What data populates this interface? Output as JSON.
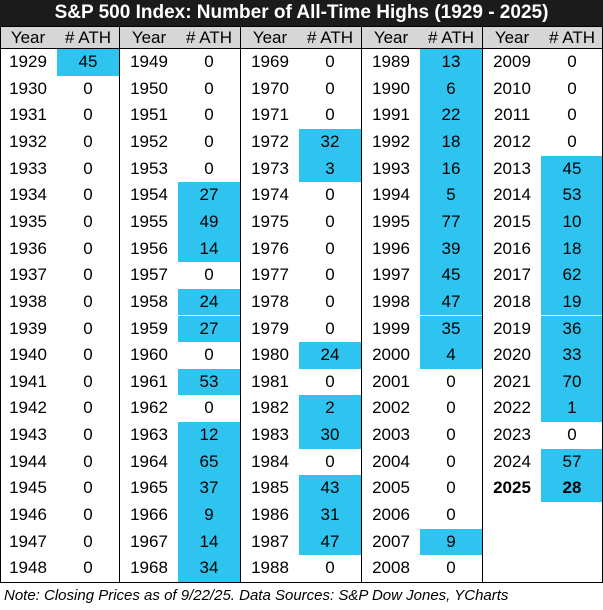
{
  "chart_data": {
    "type": "table",
    "title": "S&P 500 Index: Number of All-Time Highs (1929 - 2025)",
    "columns": [
      "Year",
      "# ATH"
    ],
    "note": "Note: Closing Prices as of 9/22/25. Data Sources: S&P Dow Jones, YCharts",
    "highlight_color": "#2fc3f0",
    "groups": [
      {
        "rows": [
          {
            "year": "1929",
            "ath": "45"
          },
          {
            "year": "1930",
            "ath": "0"
          },
          {
            "year": "1931",
            "ath": "0"
          },
          {
            "year": "1932",
            "ath": "0"
          },
          {
            "year": "1933",
            "ath": "0"
          },
          {
            "year": "1934",
            "ath": "0"
          },
          {
            "year": "1935",
            "ath": "0"
          },
          {
            "year": "1936",
            "ath": "0"
          },
          {
            "year": "1937",
            "ath": "0"
          },
          {
            "year": "1938",
            "ath": "0"
          },
          {
            "year": "1939",
            "ath": "0"
          },
          {
            "year": "1940",
            "ath": "0"
          },
          {
            "year": "1941",
            "ath": "0"
          },
          {
            "year": "1942",
            "ath": "0"
          },
          {
            "year": "1943",
            "ath": "0"
          },
          {
            "year": "1944",
            "ath": "0"
          },
          {
            "year": "1945",
            "ath": "0"
          },
          {
            "year": "1946",
            "ath": "0"
          },
          {
            "year": "1947",
            "ath": "0"
          },
          {
            "year": "1948",
            "ath": "0"
          }
        ]
      },
      {
        "rows": [
          {
            "year": "1949",
            "ath": "0"
          },
          {
            "year": "1950",
            "ath": "0"
          },
          {
            "year": "1951",
            "ath": "0"
          },
          {
            "year": "1952",
            "ath": "0"
          },
          {
            "year": "1953",
            "ath": "0"
          },
          {
            "year": "1954",
            "ath": "27"
          },
          {
            "year": "1955",
            "ath": "49"
          },
          {
            "year": "1956",
            "ath": "14"
          },
          {
            "year": "1957",
            "ath": "0"
          },
          {
            "year": "1958",
            "ath": "24"
          },
          {
            "year": "1959",
            "ath": "27"
          },
          {
            "year": "1960",
            "ath": "0"
          },
          {
            "year": "1961",
            "ath": "53"
          },
          {
            "year": "1962",
            "ath": "0"
          },
          {
            "year": "1963",
            "ath": "12"
          },
          {
            "year": "1964",
            "ath": "65"
          },
          {
            "year": "1965",
            "ath": "37"
          },
          {
            "year": "1966",
            "ath": "9"
          },
          {
            "year": "1967",
            "ath": "14"
          },
          {
            "year": "1968",
            "ath": "34"
          }
        ]
      },
      {
        "rows": [
          {
            "year": "1969",
            "ath": "0"
          },
          {
            "year": "1970",
            "ath": "0"
          },
          {
            "year": "1971",
            "ath": "0"
          },
          {
            "year": "1972",
            "ath": "32"
          },
          {
            "year": "1973",
            "ath": "3"
          },
          {
            "year": "1974",
            "ath": "0"
          },
          {
            "year": "1975",
            "ath": "0"
          },
          {
            "year": "1976",
            "ath": "0"
          },
          {
            "year": "1977",
            "ath": "0"
          },
          {
            "year": "1978",
            "ath": "0"
          },
          {
            "year": "1979",
            "ath": "0"
          },
          {
            "year": "1980",
            "ath": "24"
          },
          {
            "year": "1981",
            "ath": "0"
          },
          {
            "year": "1982",
            "ath": "2"
          },
          {
            "year": "1983",
            "ath": "30"
          },
          {
            "year": "1984",
            "ath": "0"
          },
          {
            "year": "1985",
            "ath": "43"
          },
          {
            "year": "1986",
            "ath": "31"
          },
          {
            "year": "1987",
            "ath": "47"
          },
          {
            "year": "1988",
            "ath": "0"
          }
        ]
      },
      {
        "rows": [
          {
            "year": "1989",
            "ath": "13"
          },
          {
            "year": "1990",
            "ath": "6"
          },
          {
            "year": "1991",
            "ath": "22"
          },
          {
            "year": "1992",
            "ath": "18"
          },
          {
            "year": "1993",
            "ath": "16"
          },
          {
            "year": "1994",
            "ath": "5"
          },
          {
            "year": "1995",
            "ath": "77"
          },
          {
            "year": "1996",
            "ath": "39"
          },
          {
            "year": "1997",
            "ath": "45"
          },
          {
            "year": "1998",
            "ath": "47"
          },
          {
            "year": "1999",
            "ath": "35"
          },
          {
            "year": "2000",
            "ath": "4"
          },
          {
            "year": "2001",
            "ath": "0"
          },
          {
            "year": "2002",
            "ath": "0"
          },
          {
            "year": "2003",
            "ath": "0"
          },
          {
            "year": "2004",
            "ath": "0"
          },
          {
            "year": "2005",
            "ath": "0"
          },
          {
            "year": "2006",
            "ath": "0"
          },
          {
            "year": "2007",
            "ath": "9"
          },
          {
            "year": "2008",
            "ath": "0"
          }
        ]
      },
      {
        "rows": [
          {
            "year": "2009",
            "ath": "0"
          },
          {
            "year": "2010",
            "ath": "0"
          },
          {
            "year": "2011",
            "ath": "0"
          },
          {
            "year": "2012",
            "ath": "0"
          },
          {
            "year": "2013",
            "ath": "45"
          },
          {
            "year": "2014",
            "ath": "53"
          },
          {
            "year": "2015",
            "ath": "10"
          },
          {
            "year": "2016",
            "ath": "18"
          },
          {
            "year": "2017",
            "ath": "62"
          },
          {
            "year": "2018",
            "ath": "19"
          },
          {
            "year": "2019",
            "ath": "36"
          },
          {
            "year": "2020",
            "ath": "33"
          },
          {
            "year": "2021",
            "ath": "70"
          },
          {
            "year": "2022",
            "ath": "1"
          },
          {
            "year": "2023",
            "ath": "0"
          },
          {
            "year": "2024",
            "ath": "57"
          },
          {
            "year": "2025",
            "ath": "28",
            "bold": true
          }
        ]
      }
    ]
  }
}
